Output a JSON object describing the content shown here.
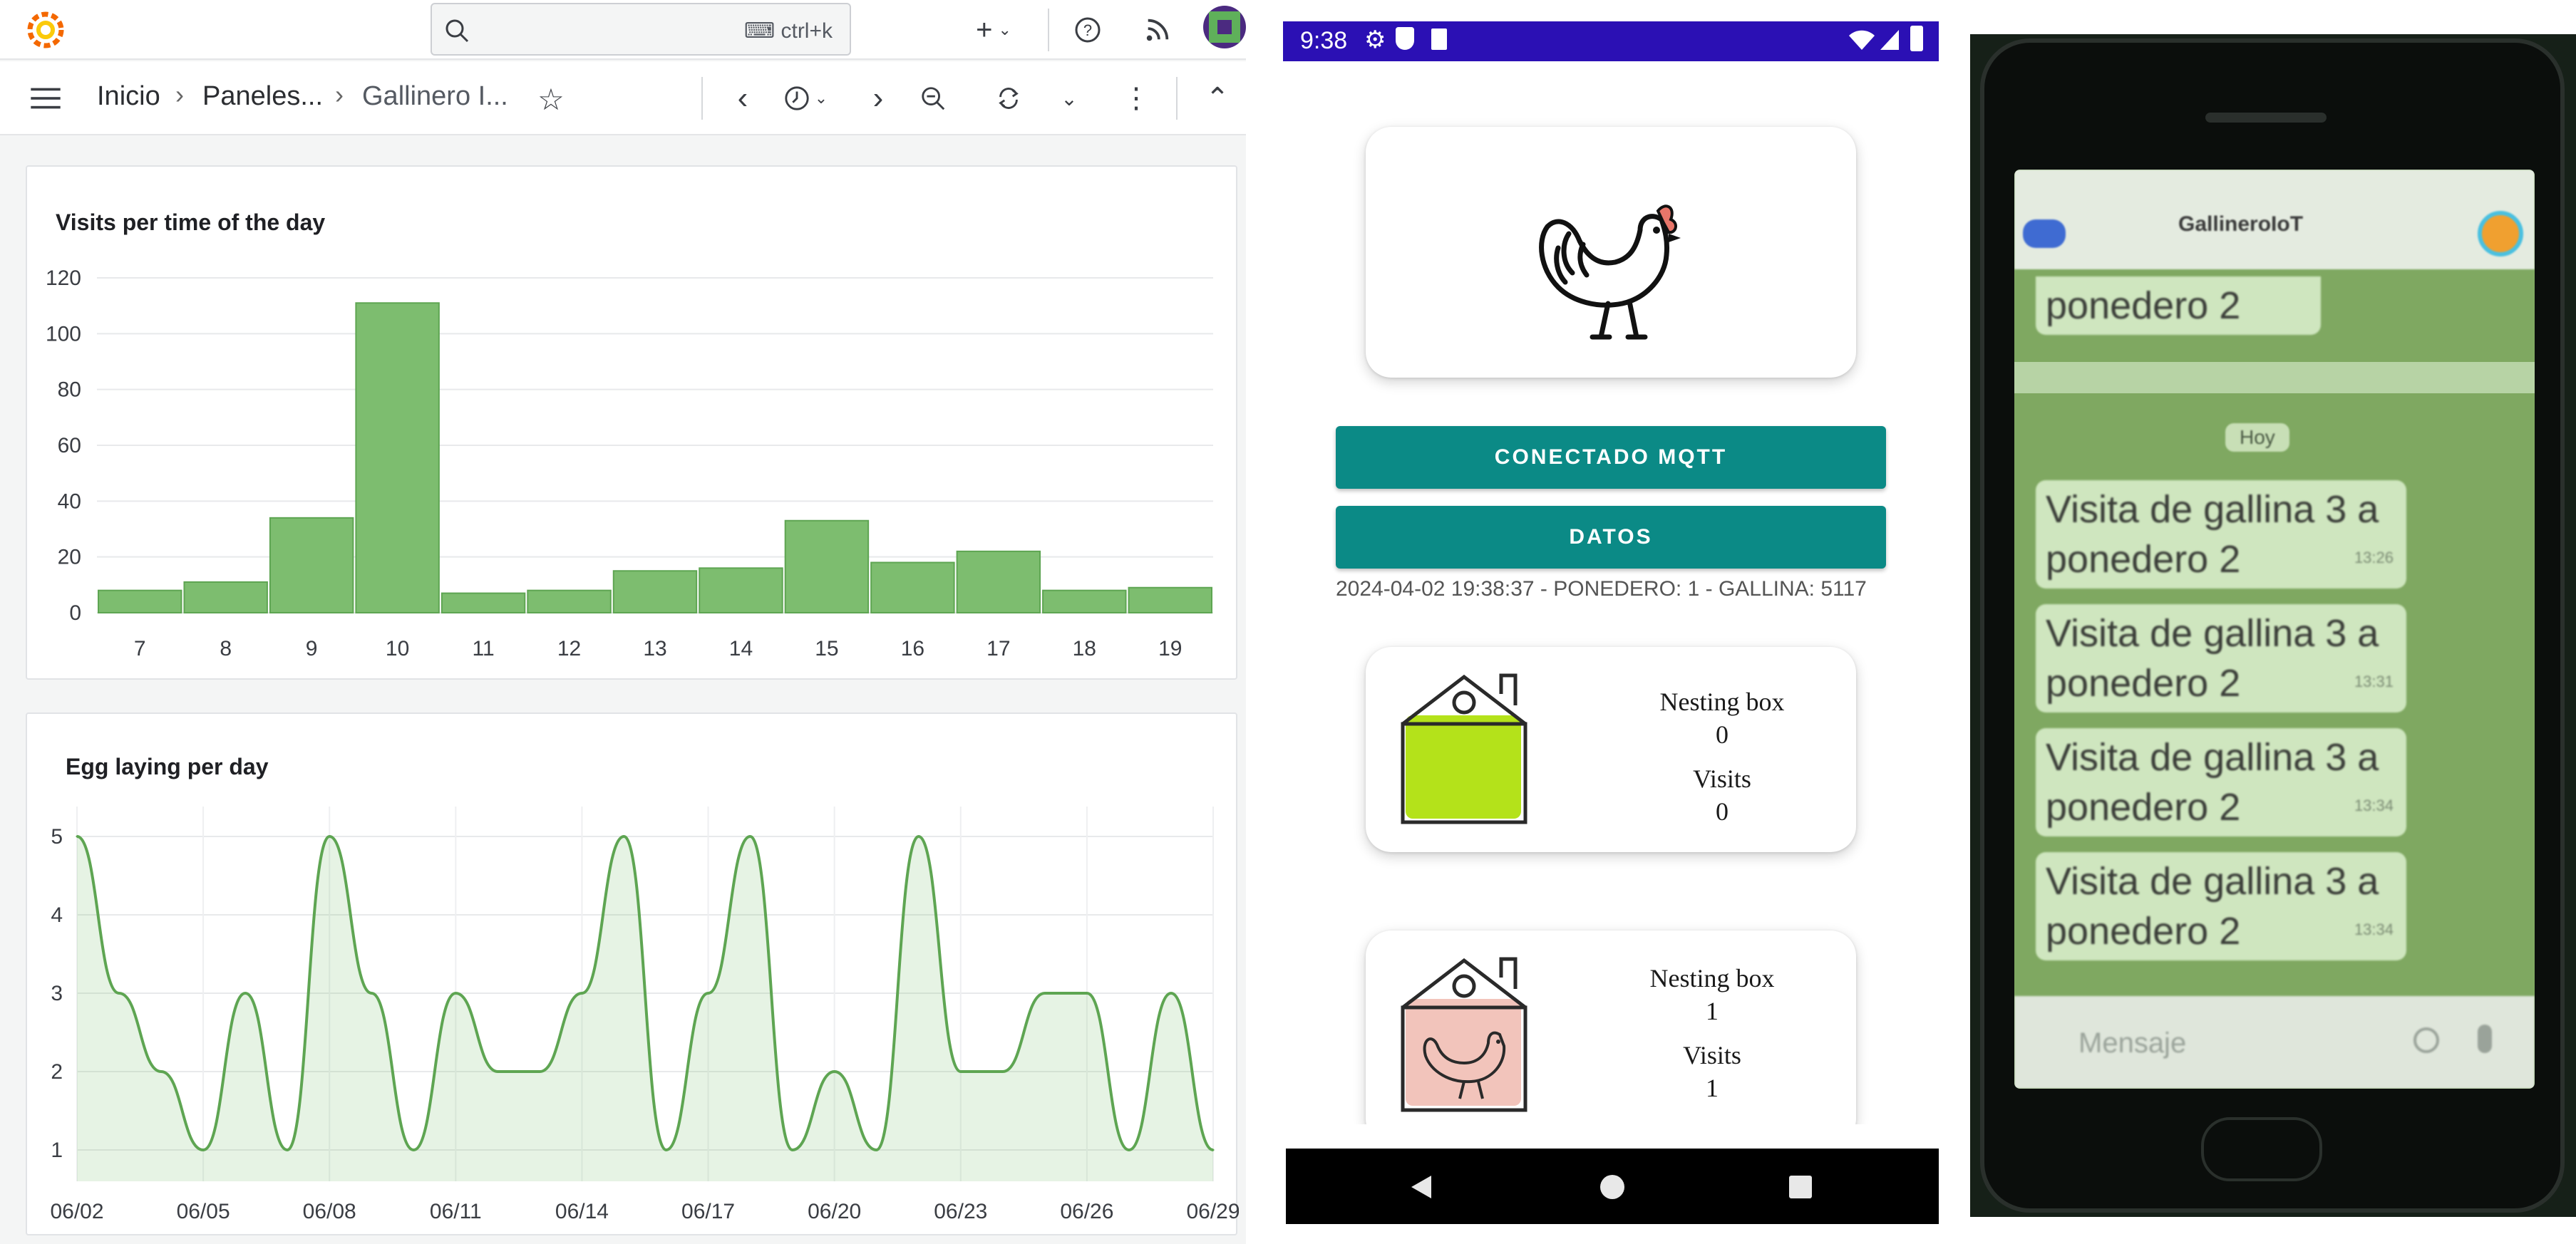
{
  "grafana": {
    "search": {
      "shortcut": "ctrl+k"
    },
    "breadcrumb": {
      "home": "Inicio",
      "dashboards": "Paneles...",
      "current": "Gallinero I..."
    },
    "icons": {
      "search": "search-icon",
      "add": "plus-icon",
      "help": "help-icon",
      "news": "rss-icon",
      "menu": "hamburger-icon",
      "star": "star-icon",
      "time": "clock-icon",
      "zoom_out": "zoom-out-icon",
      "refresh": "refresh-icon",
      "more": "kebab-icon",
      "collapse": "chevron-up-icon"
    },
    "accent": "#73bf69"
  },
  "chart_data": [
    {
      "type": "bar",
      "title": "Visits per time of the day",
      "categories": [
        "7",
        "8",
        "9",
        "10",
        "11",
        "12",
        "13",
        "14",
        "15",
        "16",
        "17",
        "18",
        "19"
      ],
      "values": [
        8,
        11,
        34,
        111,
        7,
        8,
        15,
        16,
        33,
        18,
        22,
        8,
        9
      ],
      "ylim": [
        0,
        120
      ],
      "yticks": [
        0,
        20,
        40,
        60,
        80,
        100,
        120
      ],
      "grid": true,
      "color": "#73bf69"
    },
    {
      "type": "area",
      "title": "Egg laying per day",
      "xticks": [
        "06/02",
        "06/05",
        "06/08",
        "06/11",
        "06/14",
        "06/17",
        "06/20",
        "06/23",
        "06/26",
        "06/29"
      ],
      "x": [
        "06/02",
        "06/03",
        "06/04",
        "06/05",
        "06/06",
        "06/07",
        "06/08",
        "06/09",
        "06/10",
        "06/11",
        "06/12",
        "06/13",
        "06/14",
        "06/15",
        "06/16",
        "06/17",
        "06/18",
        "06/19",
        "06/20",
        "06/21",
        "06/22",
        "06/23",
        "06/24",
        "06/25",
        "06/26",
        "06/27",
        "06/28",
        "06/29"
      ],
      "values": [
        5,
        3,
        2,
        1,
        3,
        1,
        5,
        3,
        1,
        3,
        2,
        2,
        3,
        5,
        1,
        3,
        5,
        1,
        2,
        1,
        5,
        2,
        2,
        3,
        3,
        1,
        3,
        1
      ],
      "ylim": [
        0.6,
        5.2
      ],
      "yticks": [
        1,
        2,
        3,
        4,
        5
      ],
      "grid": true,
      "color": "#73bf69"
    }
  ],
  "android": {
    "status": {
      "time": "9:38"
    },
    "buttons": {
      "mqtt": "CONECTADO MQTT",
      "data": "DATOS"
    },
    "log": "2024-04-02 19:38:37 - PONEDERO: 1 - GALLINA: 5117",
    "boxes": [
      {
        "label": "Nesting box",
        "number": "0",
        "visits_label": "Visits",
        "visits": "0",
        "color": "#b4e21a",
        "occupied": false
      },
      {
        "label": "Nesting box",
        "number": "1",
        "visits_label": "Visits",
        "visits": "1",
        "color": "#f2c4bb",
        "occupied": true
      }
    ],
    "colors": {
      "status_bar": "#2b10b4",
      "button": "#0b8a86"
    }
  },
  "phone": {
    "chat_title": "GallineroIoT",
    "prev_message": "ponedero 2",
    "date_chip": "Hoy",
    "messages": [
      {
        "text": "Visita de gallina 3 a ponedero 2",
        "time": "13:26"
      },
      {
        "text": "Visita de gallina 3 a ponedero 2",
        "time": "13:31"
      },
      {
        "text": "Visita de gallina 3 a ponedero 2",
        "time": "13:34"
      },
      {
        "text": "Visita de gallina 3 a ponedero 2",
        "time": "13:34"
      }
    ],
    "input_placeholder": "Mensaje"
  }
}
